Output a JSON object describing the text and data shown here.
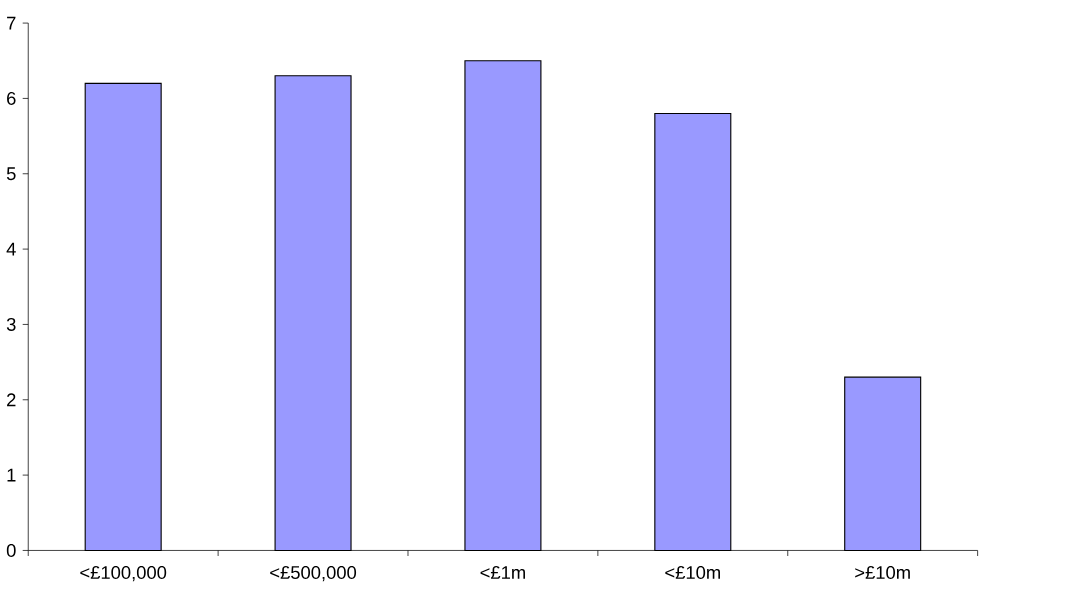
{
  "chart_data": {
    "type": "bar",
    "categories": [
      "<£100,000",
      "<£500,000",
      "<£1m",
      "<£10m",
      ">£10m"
    ],
    "values": [
      6.2,
      6.3,
      6.5,
      5.8,
      2.3
    ],
    "color": "#9999ff",
    "ylim": [
      0,
      7
    ],
    "yticks": [
      0,
      1,
      2,
      3,
      4,
      5,
      6,
      7
    ]
  }
}
